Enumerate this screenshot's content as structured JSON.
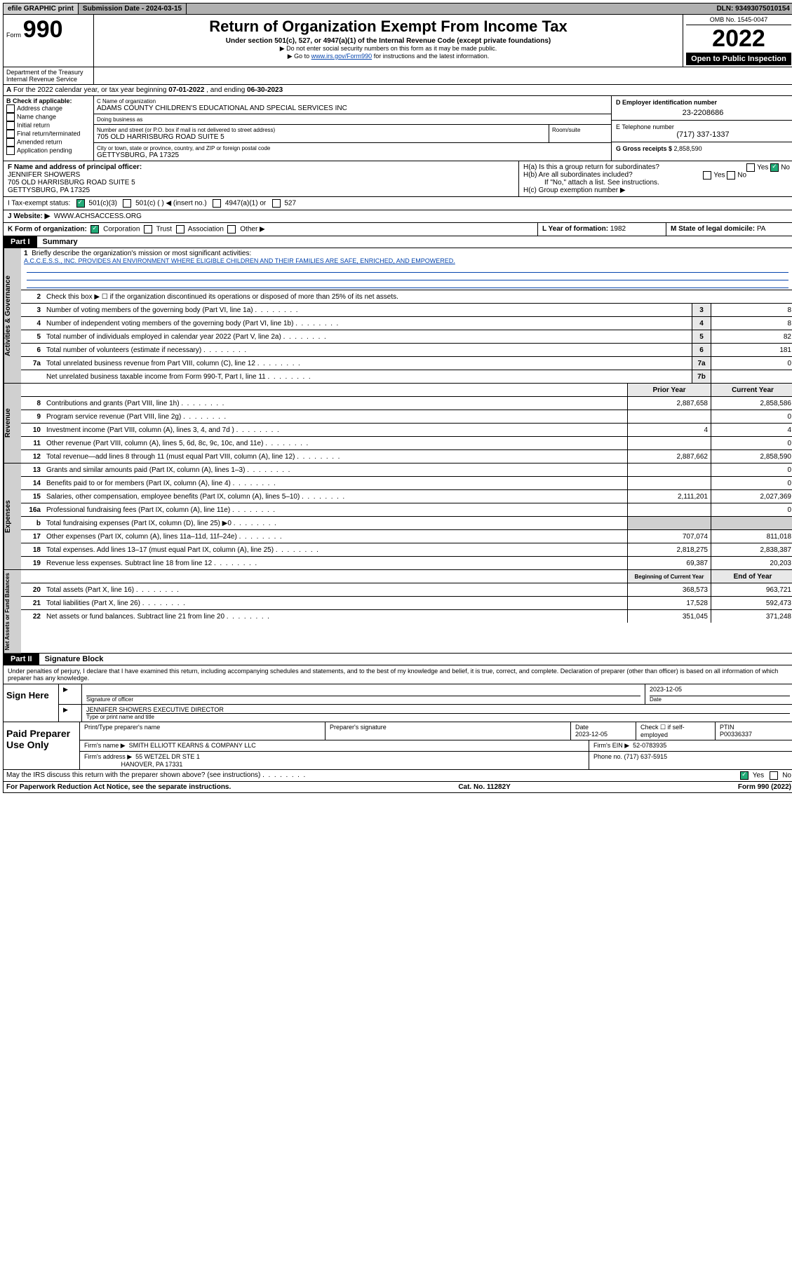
{
  "topbar": {
    "efile": "efile GRAPHIC print",
    "submission_label": "Submission Date - ",
    "submission_date": "2024-03-15",
    "dln_label": "DLN: ",
    "dln": "93493075010154"
  },
  "header": {
    "form_label": "Form",
    "form_number": "990",
    "title": "Return of Organization Exempt From Income Tax",
    "subtitle": "Under section 501(c), 527, or 4947(a)(1) of the Internal Revenue Code (except private foundations)",
    "note1": "▶ Do not enter social security numbers on this form as it may be made public.",
    "note2_pre": "▶ Go to ",
    "note2_link": "www.irs.gov/Form990",
    "note2_post": " for instructions and the latest information.",
    "dept": "Department of the Treasury\nInternal Revenue Service",
    "omb": "OMB No. 1545-0047",
    "year": "2022",
    "open_public": "Open to Public Inspection"
  },
  "period": {
    "prefix_a": "A",
    "text": " For the 2022 calendar year, or tax year beginning ",
    "begin": "07-01-2022",
    "mid": " , and ending ",
    "end": "06-30-2023"
  },
  "box_b": {
    "title": "B Check if applicable:",
    "opts": [
      "Address change",
      "Name change",
      "Initial return",
      "Final return/terminated",
      "Amended return",
      "Application pending"
    ]
  },
  "box_c": {
    "name_label": "C Name of organization",
    "name": "ADAMS COUNTY CHILDREN'S EDUCATIONAL AND SPECIAL SERVICES INC",
    "dba_label": "Doing business as",
    "dba": "",
    "street_label": "Number and street (or P.O. box if mail is not delivered to street address)",
    "room_label": "Room/suite",
    "street": "705 OLD HARRISBURG ROAD SUITE 5",
    "city_label": "City or town, state or province, country, and ZIP or foreign postal code",
    "city": "GETTYSBURG, PA  17325"
  },
  "box_d": {
    "label": "D Employer identification number",
    "value": "23-2208686"
  },
  "box_e": {
    "label": "E Telephone number",
    "value": "(717) 337-1337"
  },
  "box_g": {
    "label": "G Gross receipts $ ",
    "value": "2,858,590"
  },
  "box_f": {
    "label": "F Name and address of principal officer:",
    "name": "JENNIFER SHOWERS",
    "addr1": "705 OLD HARRISBURG ROAD SUITE 5",
    "addr2": "GETTYSBURG, PA  17325"
  },
  "box_h": {
    "ha_label": "H(a)  Is this a group return for subordinates?",
    "ha_yes": "Yes",
    "ha_no": "No",
    "hb_label": "H(b)  Are all subordinates included?",
    "hb_yes": "Yes",
    "hb_no": "No",
    "hb_note": "If \"No,\" attach a list. See instructions.",
    "hc_label": "H(c)  Group exemption number ▶",
    "hc_value": ""
  },
  "box_i": {
    "label": "I    Tax-exempt status:",
    "opt1": "501(c)(3)",
    "opt2": "501(c) (  ) ◀ (insert no.)",
    "opt3": "4947(a)(1) or",
    "opt4": "527"
  },
  "box_j": {
    "label": "J    Website: ▶",
    "value": "WWW.ACHSACCESS.ORG"
  },
  "box_k": {
    "label": "K Form of organization:",
    "opts": [
      "Corporation",
      "Trust",
      "Association",
      "Other ▶"
    ]
  },
  "box_l": {
    "label": "L Year of formation: ",
    "value": "1982"
  },
  "box_m": {
    "label": "M State of legal domicile: ",
    "value": "PA"
  },
  "part1": {
    "part": "Part I",
    "title": "Summary"
  },
  "mission": {
    "num": "1",
    "label": "Briefly describe the organization's mission or most significant activities:",
    "text": "A.C.C.E.S.S., INC. PROVIDES AN ENVIRONMENT WHERE ELIGIBLE CHILDREN AND THEIR FAMILIES ARE SAFE, ENRICHED, AND EMPOWERED."
  },
  "line2": {
    "num": "2",
    "desc": "Check this box ▶ ☐  if the organization discontinued its operations or disposed of more than 25% of its net assets."
  },
  "governance_lines": [
    {
      "num": "3",
      "desc": "Number of voting members of the governing body (Part VI, line 1a)",
      "box": "3",
      "val": "8"
    },
    {
      "num": "4",
      "desc": "Number of independent voting members of the governing body (Part VI, line 1b)",
      "box": "4",
      "val": "8"
    },
    {
      "num": "5",
      "desc": "Total number of individuals employed in calendar year 2022 (Part V, line 2a)",
      "box": "5",
      "val": "82"
    },
    {
      "num": "6",
      "desc": "Total number of volunteers (estimate if necessary)",
      "box": "6",
      "val": "181"
    },
    {
      "num": "7a",
      "desc": "Total unrelated business revenue from Part VIII, column (C), line 12",
      "box": "7a",
      "val": "0"
    },
    {
      "num": "",
      "desc": "Net unrelated business taxable income from Form 990-T, Part I, line 11",
      "box": "7b",
      "val": ""
    }
  ],
  "twocol_header": {
    "prior": "Prior Year",
    "current": "Current Year"
  },
  "revenue_lines": [
    {
      "num": "8",
      "desc": "Contributions and grants (Part VIII, line 1h)",
      "prior": "2,887,658",
      "current": "2,858,586"
    },
    {
      "num": "9",
      "desc": "Program service revenue (Part VIII, line 2g)",
      "prior": "",
      "current": "0"
    },
    {
      "num": "10",
      "desc": "Investment income (Part VIII, column (A), lines 3, 4, and 7d )",
      "prior": "4",
      "current": "4"
    },
    {
      "num": "11",
      "desc": "Other revenue (Part VIII, column (A), lines 5, 6d, 8c, 9c, 10c, and 11e)",
      "prior": "",
      "current": "0"
    },
    {
      "num": "12",
      "desc": "Total revenue—add lines 8 through 11 (must equal Part VIII, column (A), line 12)",
      "prior": "2,887,662",
      "current": "2,858,590"
    }
  ],
  "expense_lines": [
    {
      "num": "13",
      "desc": "Grants and similar amounts paid (Part IX, column (A), lines 1–3)",
      "prior": "",
      "current": "0"
    },
    {
      "num": "14",
      "desc": "Benefits paid to or for members (Part IX, column (A), line 4)",
      "prior": "",
      "current": "0"
    },
    {
      "num": "15",
      "desc": "Salaries, other compensation, employee benefits (Part IX, column (A), lines 5–10)",
      "prior": "2,111,201",
      "current": "2,027,369"
    },
    {
      "num": "16a",
      "desc": "Professional fundraising fees (Part IX, column (A), line 11e)",
      "prior": "",
      "current": "0"
    },
    {
      "num": "b",
      "desc": "Total fundraising expenses (Part IX, column (D), line 25) ▶0",
      "prior": "SHADE",
      "current": "SHADE"
    },
    {
      "num": "17",
      "desc": "Other expenses (Part IX, column (A), lines 11a–11d, 11f–24e)",
      "prior": "707,074",
      "current": "811,018"
    },
    {
      "num": "18",
      "desc": "Total expenses. Add lines 13–17 (must equal Part IX, column (A), line 25)",
      "prior": "2,818,275",
      "current": "2,838,387"
    },
    {
      "num": "19",
      "desc": "Revenue less expenses. Subtract line 18 from line 12",
      "prior": "69,387",
      "current": "20,203"
    }
  ],
  "netassets_header": {
    "begin": "Beginning of Current Year",
    "end": "End of Year"
  },
  "netassets_lines": [
    {
      "num": "20",
      "desc": "Total assets (Part X, line 16)",
      "prior": "368,573",
      "current": "963,721"
    },
    {
      "num": "21",
      "desc": "Total liabilities (Part X, line 26)",
      "prior": "17,528",
      "current": "592,473"
    },
    {
      "num": "22",
      "desc": "Net assets or fund balances. Subtract line 21 from line 20",
      "prior": "351,045",
      "current": "371,248"
    }
  ],
  "vtabs": {
    "gov": "Activities & Governance",
    "rev": "Revenue",
    "exp": "Expenses",
    "net": "Net Assets or Fund Balances"
  },
  "part2": {
    "part": "Part II",
    "title": "Signature Block"
  },
  "sig_decl": "Under penalties of perjury, I declare that I have examined this return, including accompanying schedules and statements, and to the best of my knowledge and belief, it is true, correct, and complete. Declaration of preparer (other than officer) is based on all information of which preparer has any knowledge.",
  "sign_here": {
    "label": "Sign Here",
    "sig_label": "Signature of officer",
    "date_label": "Date",
    "date": "2023-12-05",
    "name": "JENNIFER SHOWERS EXECUTIVE DIRECTOR",
    "name_label": "Type or print name and title"
  },
  "preparer": {
    "label": "Paid Preparer Use Only",
    "h_name": "Print/Type preparer's name",
    "h_sig": "Preparer's signature",
    "h_date": "Date",
    "date": "2023-12-05",
    "h_check": "Check ☐ if self-employed",
    "h_ptin": "PTIN",
    "ptin": "P00336337",
    "firm_name_label": "Firm's name    ▶",
    "firm_name": "SMITH ELLIOTT KEARNS & COMPANY LLC",
    "firm_ein_label": "Firm's EIN ▶",
    "firm_ein": "52-0783935",
    "firm_addr_label": "Firm's address ▶",
    "firm_addr1": "55 WETZEL DR STE 1",
    "firm_addr2": "HANOVER, PA  17331",
    "phone_label": "Phone no. ",
    "phone": "(717) 637-5915"
  },
  "discuss": {
    "text": "May the IRS discuss this return with the preparer shown above? (see instructions)",
    "yes": "Yes",
    "no": "No"
  },
  "footer": {
    "left": "For Paperwork Reduction Act Notice, see the separate instructions.",
    "mid": "Cat. No. 11282Y",
    "right_pre": "Form ",
    "right_form": "990",
    "right_post": " (2022)"
  }
}
